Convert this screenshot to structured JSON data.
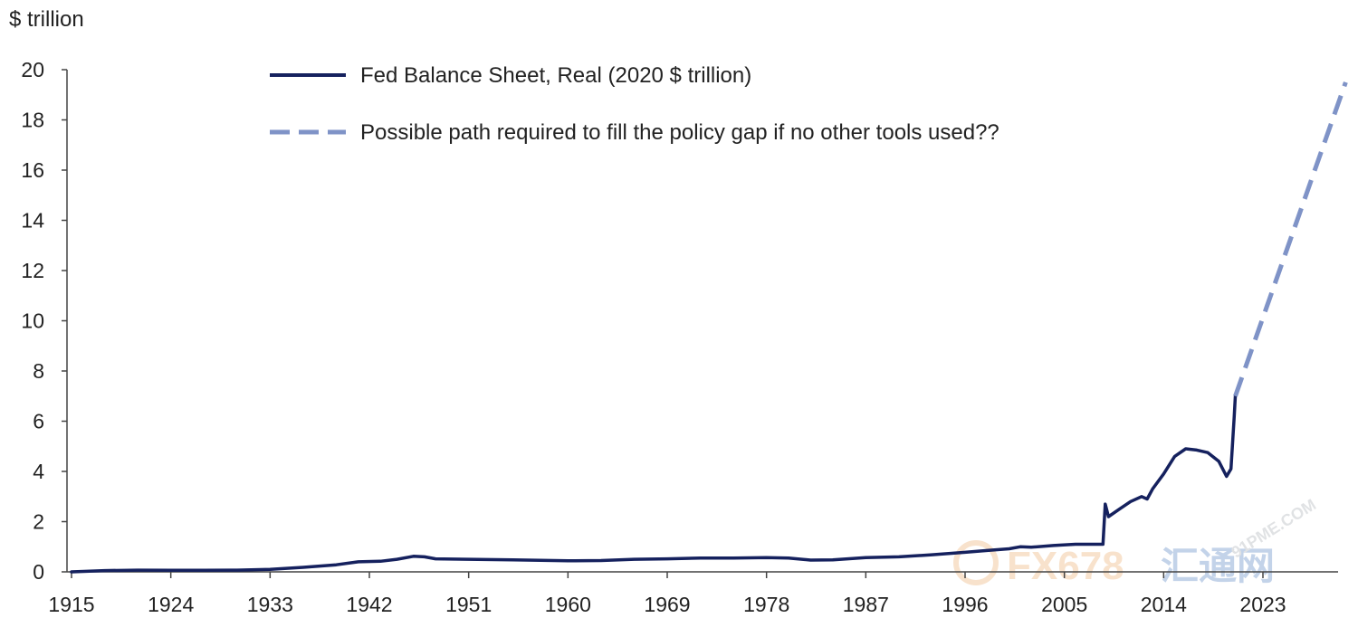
{
  "chart_data": {
    "type": "line",
    "title": "",
    "ylabel": "$ trillion",
    "xlabel": "",
    "xlim": [
      1915,
      2031
    ],
    "ylim": [
      0,
      20
    ],
    "x_ticks": [
      "1915",
      "1924",
      "1933",
      "1942",
      "1951",
      "1960",
      "1969",
      "1978",
      "1987",
      "1996",
      "2005",
      "2014",
      "2023"
    ],
    "y_ticks": [
      "0",
      "2",
      "4",
      "6",
      "8",
      "10",
      "12",
      "14",
      "16",
      "18",
      "20"
    ],
    "grid": false,
    "legend_position": "top-center",
    "series": [
      {
        "name": "Fed Balance Sheet, Real (2020 $ trillion)",
        "style": "solid",
        "color": "#15215e",
        "points": [
          [
            1915,
            0.0
          ],
          [
            1918,
            0.05
          ],
          [
            1921,
            0.07
          ],
          [
            1924,
            0.06
          ],
          [
            1927,
            0.06
          ],
          [
            1930,
            0.07
          ],
          [
            1933,
            0.1
          ],
          [
            1936,
            0.18
          ],
          [
            1939,
            0.28
          ],
          [
            1941,
            0.4
          ],
          [
            1943,
            0.42
          ],
          [
            1944.5,
            0.5
          ],
          [
            1946,
            0.62
          ],
          [
            1947,
            0.6
          ],
          [
            1948,
            0.52
          ],
          [
            1951,
            0.5
          ],
          [
            1955,
            0.48
          ],
          [
            1960,
            0.44
          ],
          [
            1963,
            0.45
          ],
          [
            1966,
            0.5
          ],
          [
            1969,
            0.52
          ],
          [
            1972,
            0.55
          ],
          [
            1975,
            0.55
          ],
          [
            1978,
            0.57
          ],
          [
            1980,
            0.55
          ],
          [
            1982,
            0.47
          ],
          [
            1984,
            0.48
          ],
          [
            1987,
            0.57
          ],
          [
            1990,
            0.6
          ],
          [
            1993,
            0.68
          ],
          [
            1996,
            0.78
          ],
          [
            1998,
            0.85
          ],
          [
            2000,
            0.92
          ],
          [
            2001,
            1.0
          ],
          [
            2002,
            0.98
          ],
          [
            2004,
            1.05
          ],
          [
            2006,
            1.1
          ],
          [
            2008.5,
            1.1
          ],
          [
            2008.7,
            2.7
          ],
          [
            2009,
            2.2
          ],
          [
            2010,
            2.5
          ],
          [
            2011,
            2.8
          ],
          [
            2012,
            3.0
          ],
          [
            2012.5,
            2.9
          ],
          [
            2013,
            3.3
          ],
          [
            2014,
            3.9
          ],
          [
            2015,
            4.6
          ],
          [
            2016,
            4.9
          ],
          [
            2017,
            4.85
          ],
          [
            2018,
            4.75
          ],
          [
            2019,
            4.4
          ],
          [
            2019.7,
            3.8
          ],
          [
            2020.1,
            4.1
          ],
          [
            2020.4,
            6.2
          ],
          [
            2020.5,
            7.0
          ]
        ]
      },
      {
        "name": "Possible path required to fill the policy gap if no other tools used??",
        "style": "dashed",
        "color": "#7f93c7",
        "points": [
          [
            2020.5,
            7.0
          ],
          [
            2030.5,
            19.5
          ]
        ]
      }
    ]
  },
  "watermark": {
    "text": "FX678",
    "text2": "汇通网",
    "url": "91PME.COM"
  }
}
